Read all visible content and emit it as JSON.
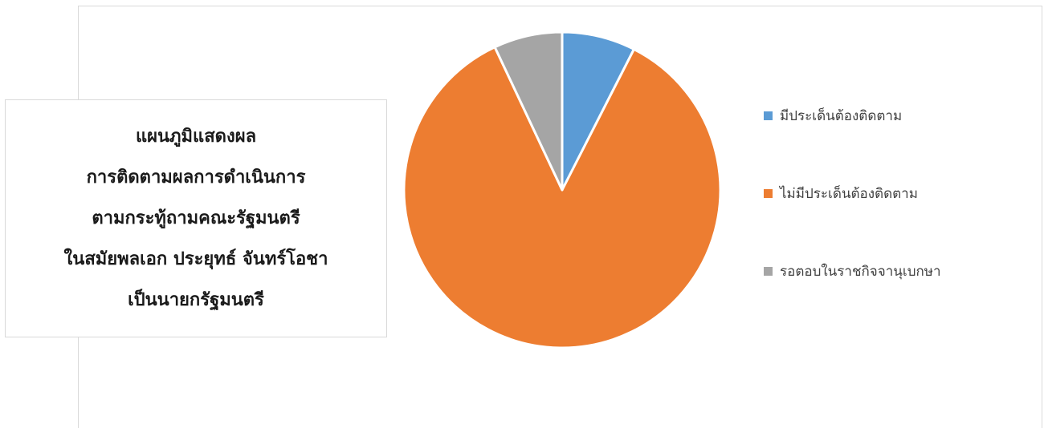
{
  "title": {
    "lines": [
      "แผนภูมิแสดงผล",
      "การติดตามผลการดำเนินการ",
      "ตามกระทู้ถามคณะรัฐมนตรี",
      "ในสมัยพลเอก ประยุทธ์  จันทร์โอชา",
      "เป็นนายกรัฐมนตรี"
    ]
  },
  "chart_data": {
    "type": "pie",
    "categories": [
      "มีประเด็นต้องติดตาม",
      "ไม่มีประเด็นต้องติดตาม",
      "รอตอบในราชกิจจานุเบกษา"
    ],
    "values": [
      7.5,
      85.5,
      7.0
    ],
    "colors": [
      "#5B9BD5",
      "#ED7D31",
      "#A5A5A5"
    ],
    "start_angle_deg": 0,
    "legend_position": "right"
  }
}
